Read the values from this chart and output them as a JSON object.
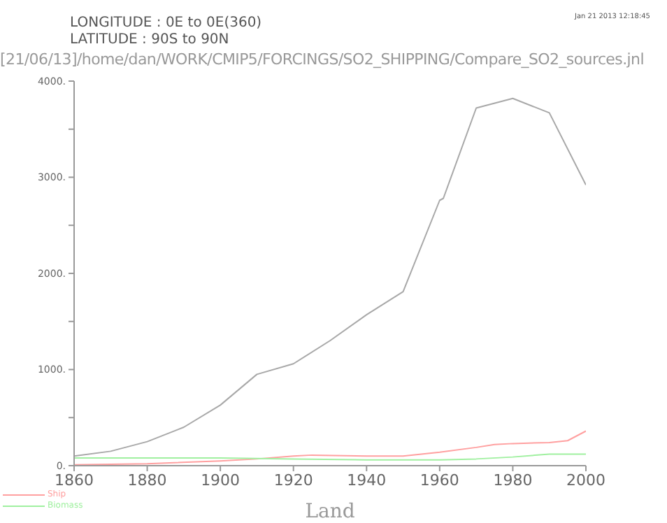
{
  "chart_data": {
    "type": "line",
    "title": "[21/06/13]/home/dan/WORK/CMIP5/FORCINGS/SO2_SHIPPING/Compare_SO2_sources.jnl",
    "annotations": [
      "LONGITUDE : 0E to 0E(360)",
      "LATITUDE : 90S to 90N",
      "Jan 21 2013 12:18:45"
    ],
    "xlabel": "Land",
    "series": [
      {
        "color": "#a8a8a8",
        "x": [
          1860,
          1870,
          1880,
          1890,
          1900,
          1910,
          1920,
          1930,
          1940,
          1950,
          1960,
          1961,
          1970,
          1980,
          1990,
          2000
        ],
        "values": [
          100,
          150,
          250,
          400,
          630,
          950,
          1060,
          1300,
          1570,
          1810,
          2760,
          2780,
          3720,
          3820,
          3670,
          2920
        ]
      },
      {
        "name": "Ship",
        "color": "#ffa0a0",
        "x": [
          1860,
          1880,
          1900,
          1910,
          1920,
          1925,
          1940,
          1950,
          1960,
          1970,
          1975,
          1980,
          1990,
          1995,
          2000
        ],
        "values": [
          10,
          20,
          50,
          70,
          100,
          110,
          100,
          100,
          140,
          190,
          220,
          230,
          240,
          260,
          360
        ]
      },
      {
        "name": "Biomass",
        "color": "#a0f0a0",
        "x": [
          1860,
          1900,
          1920,
          1940,
          1960,
          1970,
          1980,
          1990,
          2000
        ],
        "values": [
          80,
          80,
          70,
          60,
          60,
          70,
          90,
          120,
          120
        ]
      }
    ],
    "xlim": [
      1860,
      2000
    ],
    "xticks": [
      1860,
      1880,
      1900,
      1920,
      1940,
      1960,
      1980,
      2000
    ],
    "ylim": [
      0,
      4000
    ],
    "yticks": [
      {
        "value": 0,
        "label": "0."
      },
      {
        "value": 500,
        "label": null
      },
      {
        "value": 1000,
        "label": "1000."
      },
      {
        "value": 1500,
        "label": null
      },
      {
        "value": 2000,
        "label": "2000."
      },
      {
        "value": 2500,
        "label": null
      },
      {
        "value": 3000,
        "label": "3000."
      },
      {
        "value": 3500,
        "label": null
      },
      {
        "value": 4000,
        "label": "4000."
      }
    ],
    "legend": "bottom left",
    "marker": "none",
    "line_style": "solid"
  }
}
